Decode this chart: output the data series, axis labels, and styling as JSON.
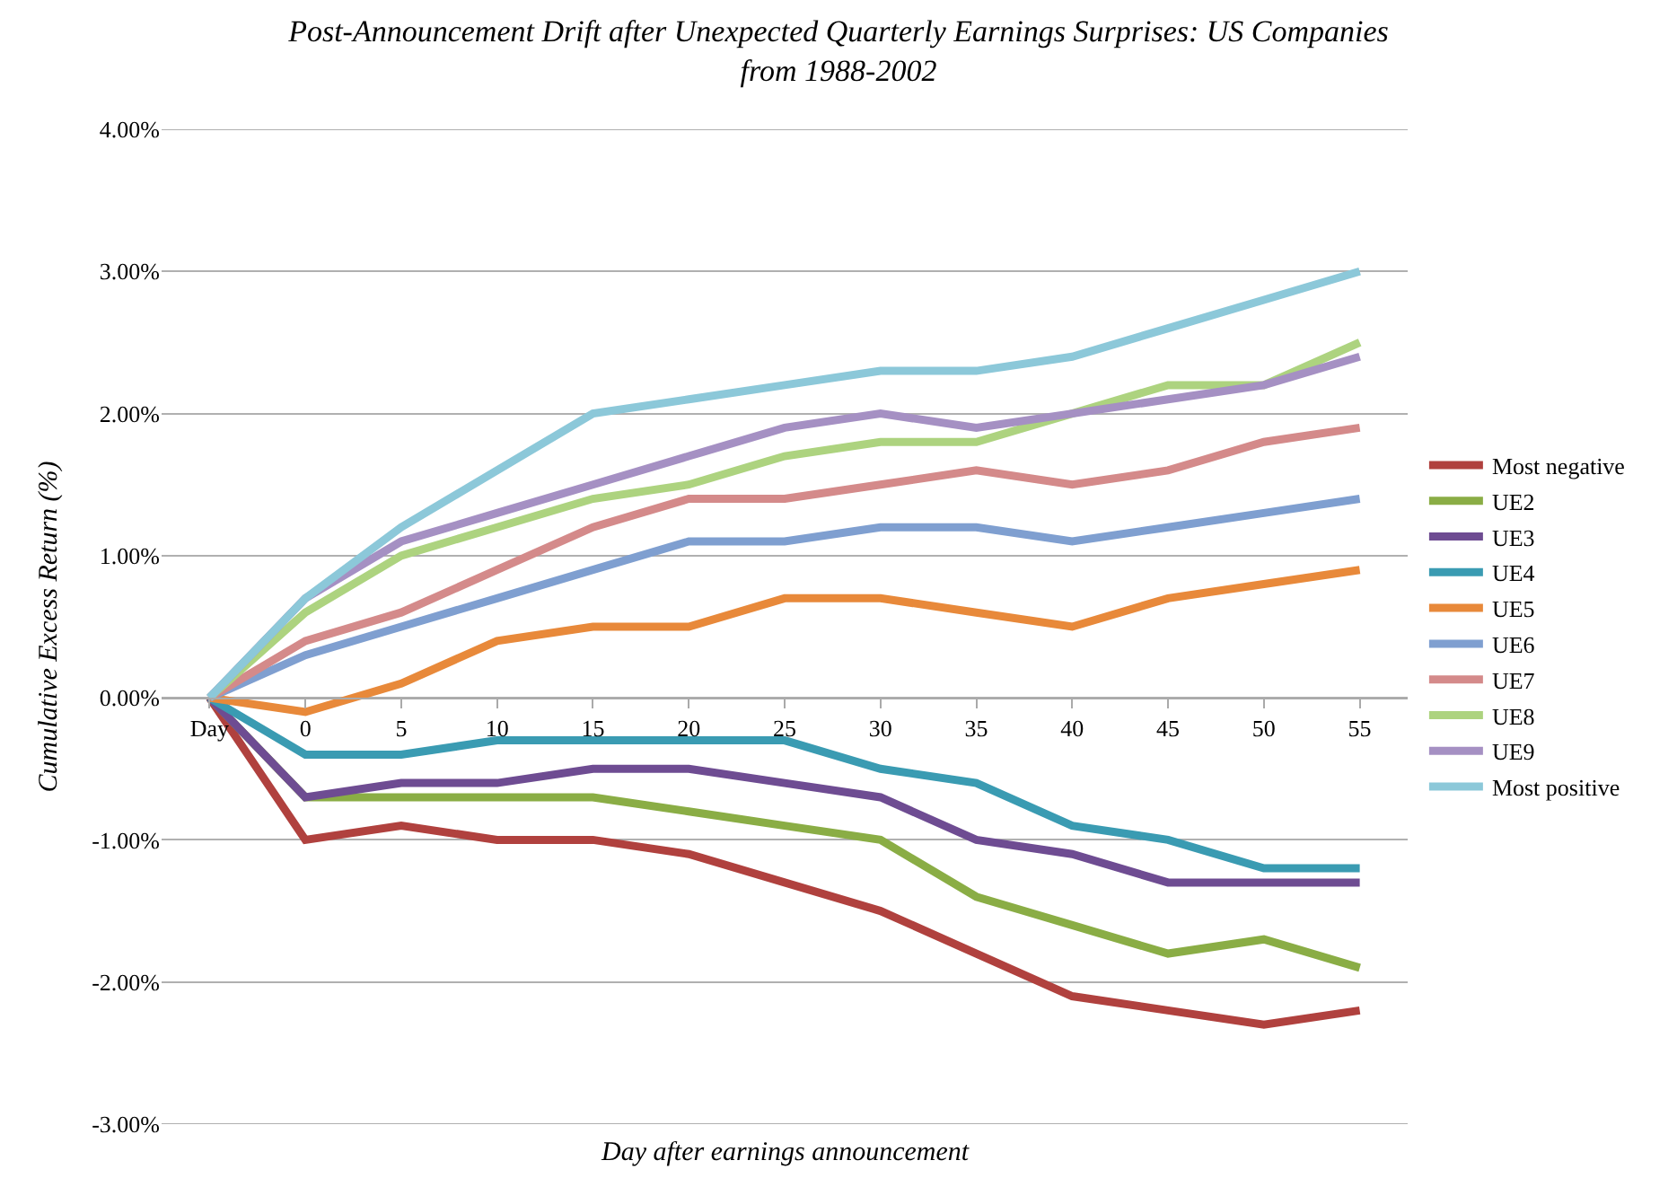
{
  "chart_data": {
    "type": "line",
    "title": "Post-Announcement Drift after Unexpected Quarterly Earnings Surprises: US Companies from 1988-2002",
    "xlabel": "Day after earnings announcement",
    "ylabel": "Cumulative Excess Return (%)",
    "categories": [
      "Day",
      "0",
      "5",
      "10",
      "15",
      "20",
      "25",
      "30",
      "35",
      "40",
      "45",
      "50",
      "55"
    ],
    "series": [
      {
        "name": "Most negative",
        "color": "#b0413e",
        "values": [
          0,
          -1.0,
          -0.9,
          -1.0,
          -1.0,
          -1.1,
          -1.3,
          -1.5,
          -1.8,
          -2.1,
          -2.2,
          -2.3,
          -2.2
        ]
      },
      {
        "name": "UE2",
        "color": "#8aad45",
        "values": [
          0,
          -0.7,
          -0.7,
          -0.7,
          -0.7,
          -0.8,
          -0.9,
          -1.0,
          -1.4,
          -1.6,
          -1.8,
          -1.7,
          -1.9
        ]
      },
      {
        "name": "UE3",
        "color": "#6e4c92",
        "values": [
          0,
          -0.7,
          -0.6,
          -0.6,
          -0.5,
          -0.5,
          -0.6,
          -0.7,
          -1.0,
          -1.1,
          -1.3,
          -1.3,
          -1.3
        ]
      },
      {
        "name": "UE4",
        "color": "#3a9bb2",
        "values": [
          0,
          -0.4,
          -0.4,
          -0.3,
          -0.3,
          -0.3,
          -0.3,
          -0.5,
          -0.6,
          -0.9,
          -1.0,
          -1.2,
          -1.2
        ]
      },
      {
        "name": "UE5",
        "color": "#e8893a",
        "values": [
          0,
          -0.1,
          0.1,
          0.4,
          0.5,
          0.5,
          0.7,
          0.7,
          0.6,
          0.5,
          0.7,
          0.8,
          0.9
        ]
      },
      {
        "name": "UE6",
        "color": "#7f9fd0",
        "values": [
          0,
          0.3,
          0.5,
          0.7,
          0.9,
          1.1,
          1.1,
          1.2,
          1.2,
          1.1,
          1.2,
          1.3,
          1.4
        ]
      },
      {
        "name": "UE7",
        "color": "#d48a8a",
        "values": [
          0,
          0.4,
          0.6,
          0.9,
          1.2,
          1.4,
          1.4,
          1.5,
          1.6,
          1.5,
          1.6,
          1.8,
          1.9
        ]
      },
      {
        "name": "UE8",
        "color": "#add37f",
        "values": [
          0,
          0.6,
          1.0,
          1.2,
          1.4,
          1.5,
          1.7,
          1.8,
          1.8,
          2.0,
          2.2,
          2.2,
          2.5
        ]
      },
      {
        "name": "UE9",
        "color": "#a590c3",
        "values": [
          0,
          0.7,
          1.1,
          1.3,
          1.5,
          1.7,
          1.9,
          2.0,
          1.9,
          2.0,
          2.1,
          2.2,
          2.4
        ]
      },
      {
        "name": "Most positive",
        "color": "#8cc8d9",
        "values": [
          0,
          0.7,
          1.2,
          1.6,
          2.0,
          2.1,
          2.2,
          2.3,
          2.3,
          2.4,
          2.6,
          2.8,
          3.0
        ]
      }
    ],
    "ylim": [
      -3,
      4
    ],
    "yticks": [
      {
        "value": -3,
        "label": "-3.00%"
      },
      {
        "value": -2,
        "label": "-2.00%"
      },
      {
        "value": -1,
        "label": "-1.00%"
      },
      {
        "value": 0,
        "label": "0.00%"
      },
      {
        "value": 1,
        "label": "1.00%"
      },
      {
        "value": 2,
        "label": "2.00%"
      },
      {
        "value": 3,
        "label": "3.00%"
      },
      {
        "value": 4,
        "label": "4.00%"
      }
    ],
    "grid": "y",
    "legend": "right",
    "marker": "none",
    "line_style": "solid"
  }
}
